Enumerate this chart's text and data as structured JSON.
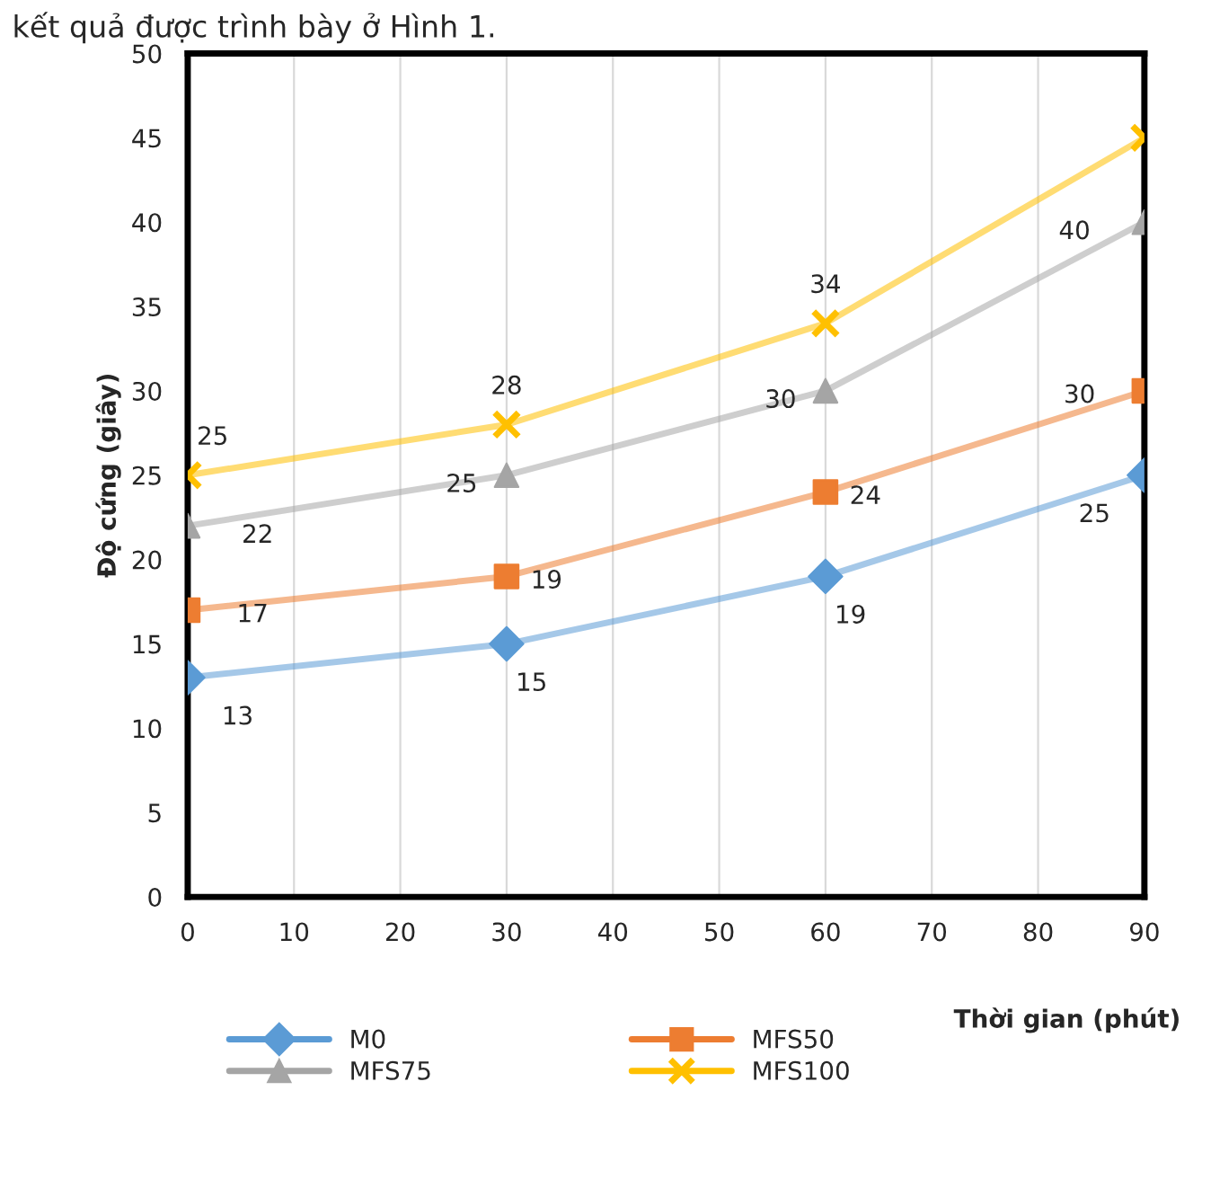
{
  "chart_data": {
    "type": "line",
    "xlabel": "Thời gian (phút)",
    "ylabel": "Độ cứng (giây)",
    "x": [
      0,
      30,
      60,
      90
    ],
    "series": [
      {
        "name": "M0",
        "color": "#5b9bd5",
        "values": [
          13,
          15,
          19,
          25
        ],
        "marker": "diamond",
        "value_labels": [
          "13",
          "15",
          "19",
          "25"
        ]
      },
      {
        "name": "MFS50",
        "color": "#ed7d31",
        "values": [
          17,
          19,
          24,
          30
        ],
        "marker": "square",
        "value_labels": [
          "17",
          "19",
          "24",
          "30"
        ]
      },
      {
        "name": "MFS75",
        "color": "#a5a5a5",
        "values": [
          22,
          25,
          30,
          40
        ],
        "marker": "triangle",
        "value_labels": [
          "22",
          "25",
          "30",
          "40"
        ]
      },
      {
        "name": "MFS100",
        "color": "#ffc000",
        "values": [
          25,
          28,
          34,
          45
        ],
        "marker": "cross",
        "value_labels": [
          "25",
          "28",
          "34",
          null
        ]
      }
    ],
    "xlim": [
      0,
      90
    ],
    "xticks": [
      0,
      10,
      20,
      30,
      40,
      50,
      60,
      70,
      80,
      90
    ],
    "ylim": [
      0,
      50
    ],
    "yticks": [
      0,
      5,
      10,
      15,
      20,
      25,
      30,
      35,
      40,
      45,
      50
    ],
    "grid": "x",
    "legend": "bottom",
    "annotations": [
      "kết quả được trình bày ở Hình 1."
    ]
  }
}
